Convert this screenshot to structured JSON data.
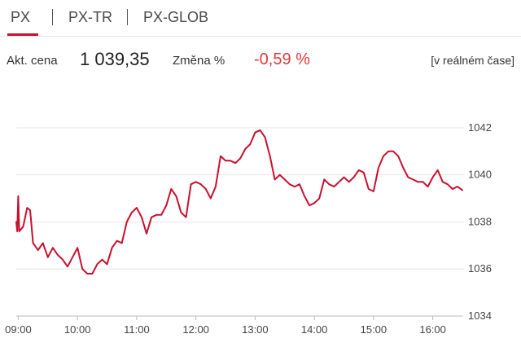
{
  "tabs": [
    {
      "label": "PX",
      "active": true
    },
    {
      "label": "PX-TR",
      "active": false
    },
    {
      "label": "PX-GLOB",
      "active": false
    }
  ],
  "quote": {
    "price_label": "Akt. cena",
    "price": "1 039,35",
    "change_label": "Změna %",
    "change": "-0,59 %",
    "realtime": "[v reálném čase]"
  },
  "colors": {
    "accent": "#c8102e",
    "negative": "#e03a3a",
    "line": "#c8102e",
    "grid": "#e6e6e6"
  },
  "chart_data": {
    "type": "line",
    "x_ticks": [
      "09:00",
      "10:00",
      "11:00",
      "12:00",
      "13:00",
      "14:00",
      "15:00",
      "16:00"
    ],
    "y_ticks": [
      "1034",
      "1036",
      "1038",
      "1040",
      "1042"
    ],
    "ylim": [
      1034,
      1043
    ],
    "series": [
      {
        "values": [
          [
            "08:58",
            1038.0
          ],
          [
            "08:59",
            1037.6
          ],
          [
            "09:00",
            1039.1
          ],
          [
            "09:01",
            1037.6
          ],
          [
            "09:05",
            1037.8
          ],
          [
            "09:09",
            1038.6
          ],
          [
            "09:12",
            1038.5
          ],
          [
            "09:15",
            1037.1
          ],
          [
            "09:20",
            1036.8
          ],
          [
            "09:25",
            1037.1
          ],
          [
            "09:30",
            1036.5
          ],
          [
            "09:35",
            1036.9
          ],
          [
            "09:40",
            1036.6
          ],
          [
            "09:45",
            1036.4
          ],
          [
            "09:50",
            1036.1
          ],
          [
            "09:55",
            1036.5
          ],
          [
            "10:00",
            1036.9
          ],
          [
            "10:05",
            1036.0
          ],
          [
            "10:10",
            1035.8
          ],
          [
            "10:15",
            1035.8
          ],
          [
            "10:20",
            1036.2
          ],
          [
            "10:25",
            1036.4
          ],
          [
            "10:30",
            1036.2
          ],
          [
            "10:35",
            1036.9
          ],
          [
            "10:40",
            1037.2
          ],
          [
            "10:45",
            1037.1
          ],
          [
            "10:50",
            1038.0
          ],
          [
            "10:55",
            1038.4
          ],
          [
            "11:00",
            1038.6
          ],
          [
            "11:05",
            1038.2
          ],
          [
            "11:10",
            1037.5
          ],
          [
            "11:15",
            1038.2
          ],
          [
            "11:20",
            1038.3
          ],
          [
            "11:25",
            1038.3
          ],
          [
            "11:30",
            1038.7
          ],
          [
            "11:35",
            1039.4
          ],
          [
            "11:40",
            1039.1
          ],
          [
            "11:45",
            1038.4
          ],
          [
            "11:50",
            1038.2
          ],
          [
            "11:55",
            1039.6
          ],
          [
            "12:00",
            1039.7
          ],
          [
            "12:05",
            1039.6
          ],
          [
            "12:10",
            1039.4
          ],
          [
            "12:15",
            1039.0
          ],
          [
            "12:20",
            1039.5
          ],
          [
            "12:25",
            1040.8
          ],
          [
            "12:30",
            1040.6
          ],
          [
            "12:35",
            1040.6
          ],
          [
            "12:40",
            1040.5
          ],
          [
            "12:45",
            1040.7
          ],
          [
            "12:50",
            1041.1
          ],
          [
            "12:55",
            1041.3
          ],
          [
            "13:00",
            1041.8
          ],
          [
            "13:05",
            1041.9
          ],
          [
            "13:10",
            1041.6
          ],
          [
            "13:15",
            1040.8
          ],
          [
            "13:20",
            1039.8
          ],
          [
            "13:25",
            1040.0
          ],
          [
            "13:30",
            1039.8
          ],
          [
            "13:35",
            1039.6
          ],
          [
            "13:40",
            1039.5
          ],
          [
            "13:45",
            1039.6
          ],
          [
            "13:50",
            1039.1
          ],
          [
            "13:55",
            1038.7
          ],
          [
            "14:00",
            1038.8
          ],
          [
            "14:05",
            1039.0
          ],
          [
            "14:10",
            1039.8
          ],
          [
            "14:15",
            1039.6
          ],
          [
            "14:20",
            1039.5
          ],
          [
            "14:25",
            1039.7
          ],
          [
            "14:30",
            1039.9
          ],
          [
            "14:35",
            1039.7
          ],
          [
            "14:40",
            1039.9
          ],
          [
            "14:45",
            1040.2
          ],
          [
            "14:50",
            1040.1
          ],
          [
            "14:55",
            1039.4
          ],
          [
            "15:00",
            1039.3
          ],
          [
            "15:05",
            1040.3
          ],
          [
            "15:10",
            1040.8
          ],
          [
            "15:15",
            1041.0
          ],
          [
            "15:20",
            1041.0
          ],
          [
            "15:25",
            1040.8
          ],
          [
            "15:30",
            1040.3
          ],
          [
            "15:35",
            1039.9
          ],
          [
            "15:40",
            1039.8
          ],
          [
            "15:45",
            1039.7
          ],
          [
            "15:50",
            1039.7
          ],
          [
            "15:55",
            1039.5
          ],
          [
            "16:00",
            1039.9
          ],
          [
            "16:05",
            1040.2
          ],
          [
            "16:10",
            1039.7
          ],
          [
            "16:15",
            1039.6
          ],
          [
            "16:20",
            1039.4
          ],
          [
            "16:25",
            1039.5
          ],
          [
            "16:30",
            1039.35
          ]
        ]
      }
    ]
  }
}
